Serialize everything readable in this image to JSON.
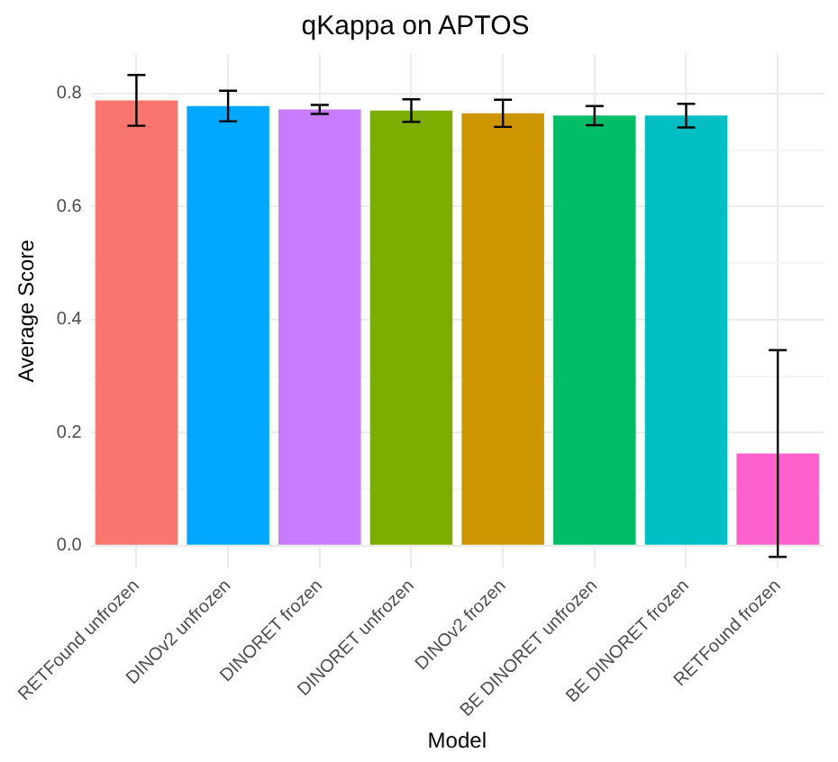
{
  "chart_data": {
    "type": "bar",
    "title": "qKappa on APTOS",
    "xlabel": "Model",
    "ylabel": "Average Score",
    "categories": [
      "RETFound unfrozen",
      "DINOv2 unfrozen",
      "DINORET frozen",
      "DINORET unfrozen",
      "DINOv2 frozen",
      "BE DINORET unfrozen",
      "BE DINORET frozen",
      "RETFound frozen"
    ],
    "values": [
      0.788,
      0.778,
      0.772,
      0.77,
      0.765,
      0.761,
      0.761,
      0.163
    ],
    "errors": [
      0.045,
      0.027,
      0.008,
      0.02,
      0.024,
      0.017,
      0.021,
      0.183
    ],
    "colors": [
      "#f8766d",
      "#00a9ff",
      "#c77cff",
      "#7cae00",
      "#cd9600",
      "#00be67",
      "#00bfc4",
      "#ff61cc"
    ],
    "ylim": [
      -0.04,
      0.87
    ],
    "yticks": [
      {
        "value": 0,
        "label": "0.0"
      },
      {
        "value": 0.1,
        "label": null
      },
      {
        "value": 0.2,
        "label": "0.2"
      },
      {
        "value": 0.3,
        "label": null
      },
      {
        "value": 0.4,
        "label": "0.4"
      },
      {
        "value": 0.5,
        "label": null
      },
      {
        "value": 0.6,
        "label": "0.6"
      },
      {
        "value": 0.7,
        "label": null
      },
      {
        "value": 0.8,
        "label": "0.8"
      }
    ],
    "grid": true
  }
}
